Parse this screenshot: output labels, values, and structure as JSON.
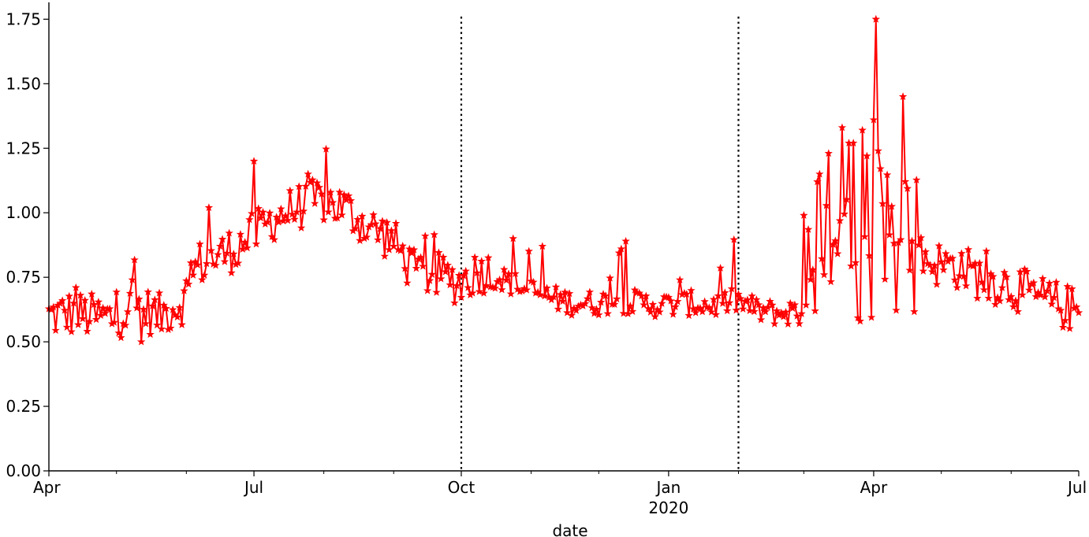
{
  "chart_data": {
    "type": "line",
    "title": "",
    "xlabel": "date",
    "ylabel": "",
    "x_range": [
      "2019-04-01",
      "2020-07-01"
    ],
    "ylim": [
      0,
      1.8
    ],
    "y_ticks": [
      0.0,
      0.25,
      0.5,
      0.75,
      1.0,
      1.25,
      1.5,
      1.75
    ],
    "y_tick_labels": [
      "0.00",
      "0.25",
      "0.50",
      "0.75",
      "1.00",
      "1.25",
      "1.50",
      "1.75"
    ],
    "x_major_ticks": [
      {
        "date": "2019-04-01",
        "label": "Apr"
      },
      {
        "date": "2019-07-01",
        "label": "Jul"
      },
      {
        "date": "2019-10-01",
        "label": "Oct"
      },
      {
        "date": "2020-01-01",
        "label": "Jan"
      },
      {
        "date": "2020-04-01",
        "label": "Apr"
      },
      {
        "date": "2020-07-01",
        "label": "Jul"
      }
    ],
    "x_minor_ticks": [
      "2019-05-01",
      "2019-06-01",
      "2019-08-01",
      "2019-09-01",
      "2019-11-01",
      "2019-12-01",
      "2020-02-01",
      "2020-03-01",
      "2020-05-01",
      "2020-06-01"
    ],
    "year_label": {
      "date": "2020-01-01",
      "label": "2020"
    },
    "vlines": [
      {
        "date": "2019-10-01",
        "style": "dotted",
        "color": "#000000"
      },
      {
        "date": "2020-02-01",
        "style": "dotted",
        "color": "#000000"
      }
    ],
    "grid": false,
    "legend": "none",
    "series": [
      {
        "color": "#ff0000",
        "marker": "star",
        "anchor_points": [
          [
            "2019-04-01",
            0.6
          ],
          [
            "2019-04-10",
            0.61
          ],
          [
            "2019-04-20",
            0.6
          ],
          [
            "2019-04-30",
            0.59
          ],
          [
            "2019-05-10",
            0.64
          ],
          [
            "2019-05-20",
            0.6
          ],
          [
            "2019-05-31",
            0.66
          ],
          [
            "2019-06-06",
            0.8
          ],
          [
            "2019-06-15",
            0.83
          ],
          [
            "2019-06-22",
            0.86
          ],
          [
            "2019-06-30",
            0.91
          ],
          [
            "2019-07-10",
            0.98
          ],
          [
            "2019-07-20",
            1.02
          ],
          [
            "2019-07-31",
            1.05
          ],
          [
            "2019-08-10",
            1.02
          ],
          [
            "2019-08-20",
            0.95
          ],
          [
            "2019-08-31",
            0.9
          ],
          [
            "2019-09-10",
            0.77
          ],
          [
            "2019-09-20",
            0.76
          ],
          [
            "2019-09-30",
            0.73
          ],
          [
            "2019-10-10",
            0.78
          ],
          [
            "2019-10-20",
            0.74
          ],
          [
            "2019-10-31",
            0.7
          ],
          [
            "2019-11-10",
            0.67
          ],
          [
            "2019-11-20",
            0.65
          ],
          [
            "2019-11-30",
            0.65
          ],
          [
            "2019-12-10",
            0.66
          ],
          [
            "2019-12-20",
            0.65
          ],
          [
            "2019-12-31",
            0.64
          ],
          [
            "2020-01-10",
            0.65
          ],
          [
            "2020-01-20",
            0.64
          ],
          [
            "2020-01-31",
            0.66
          ],
          [
            "2020-02-10",
            0.62
          ],
          [
            "2020-02-20",
            0.61
          ],
          [
            "2020-02-29",
            0.62
          ],
          [
            "2020-03-10",
            0.8
          ],
          [
            "2020-03-20",
            0.86
          ],
          [
            "2020-03-31",
            0.88
          ],
          [
            "2020-04-10",
            0.88
          ],
          [
            "2020-04-20",
            0.84
          ],
          [
            "2020-04-30",
            0.8
          ],
          [
            "2020-05-10",
            0.79
          ],
          [
            "2020-05-20",
            0.74
          ],
          [
            "2020-05-31",
            0.72
          ],
          [
            "2020-06-10",
            0.68
          ],
          [
            "2020-06-20",
            0.65
          ],
          [
            "2020-06-30",
            0.62
          ]
        ],
        "spikes": [
          [
            "2019-04-13",
            0.71
          ],
          [
            "2019-05-08",
            0.74
          ],
          [
            "2019-05-12",
            0.5
          ],
          [
            "2019-06-11",
            1.02
          ],
          [
            "2019-07-01",
            1.2
          ],
          [
            "2019-07-25",
            1.15
          ],
          [
            "2019-09-15",
            0.91
          ],
          [
            "2019-10-24",
            0.9
          ],
          [
            "2019-11-06",
            0.87
          ],
          [
            "2019-12-11",
            0.86
          ],
          [
            "2019-12-13",
            0.89
          ],
          [
            "2020-01-06",
            0.74
          ],
          [
            "2020-03-01",
            0.99
          ],
          [
            "2020-03-07",
            1.12
          ],
          [
            "2020-03-08",
            1.15
          ],
          [
            "2020-03-12",
            1.23
          ],
          [
            "2020-03-18",
            1.33
          ],
          [
            "2020-03-21",
            1.27
          ],
          [
            "2020-03-23",
            1.27
          ],
          [
            "2020-03-27",
            1.32
          ],
          [
            "2020-03-29",
            1.22
          ],
          [
            "2020-04-01",
            1.36
          ],
          [
            "2020-04-02",
            1.75
          ],
          [
            "2020-04-03",
            1.24
          ],
          [
            "2020-04-14",
            1.45
          ],
          [
            "2020-03-26",
            0.58
          ],
          [
            "2020-02-28",
            0.57
          ]
        ]
      }
    ]
  }
}
